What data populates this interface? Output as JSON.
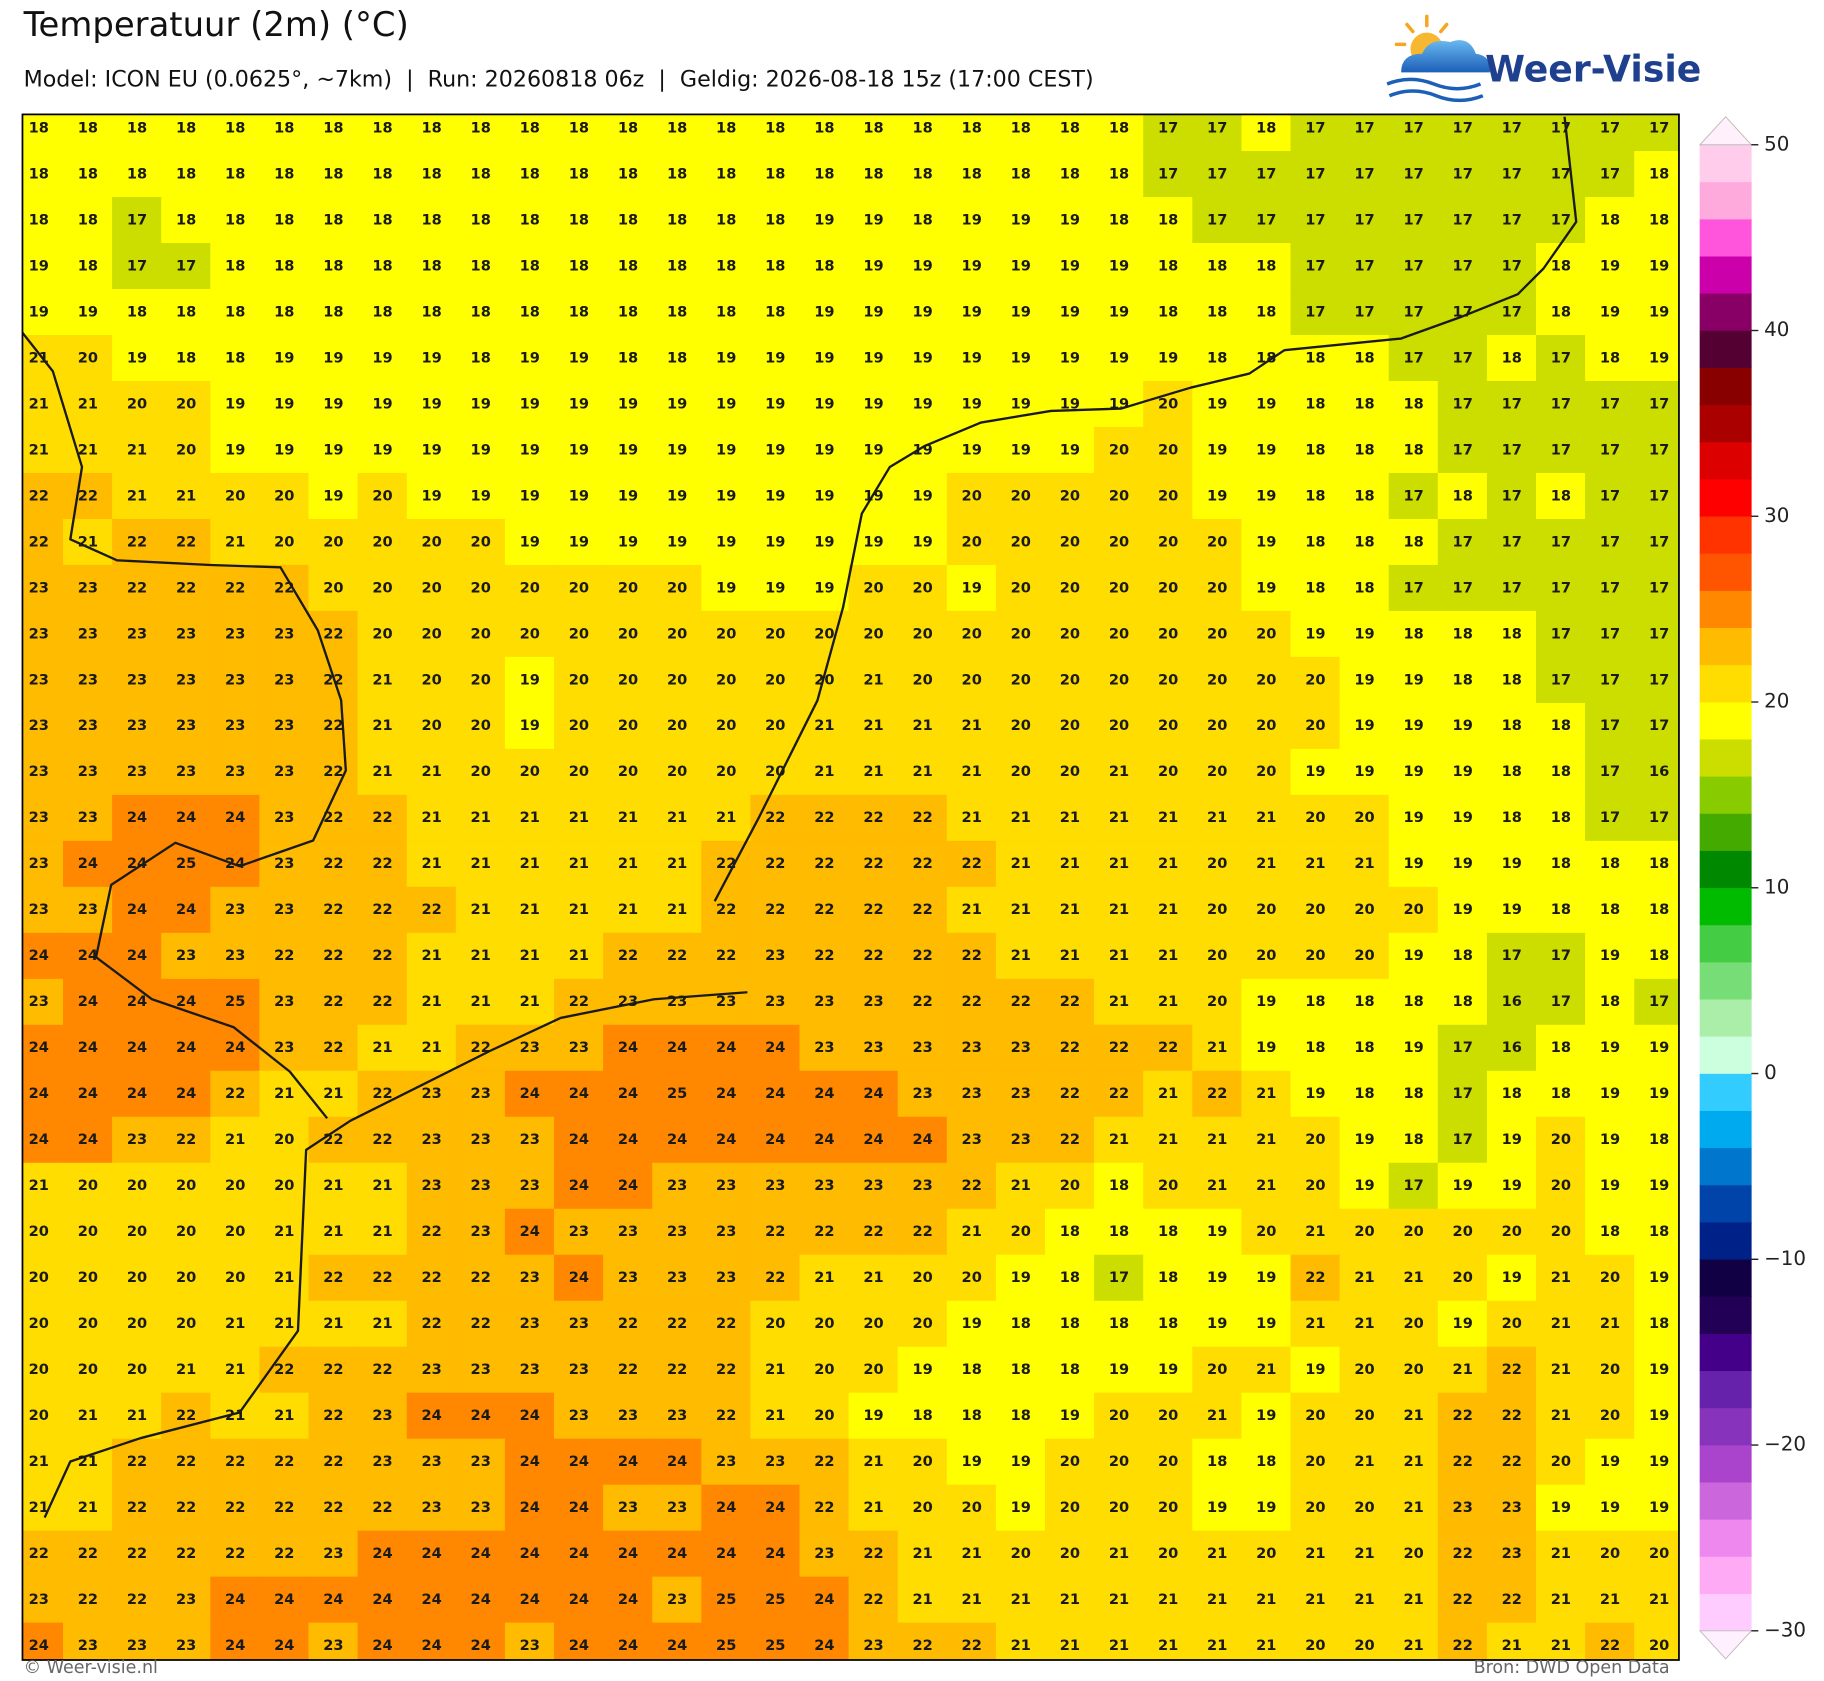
{
  "header": {
    "title": "Temperatuur (2m) (°C)",
    "subtitle": "Model: ICON EU (0.0625°, ~7km)  |  Run: 20260818 06z  |  Geldig: 2026-08-18 15z (17:00 CEST)"
  },
  "logo": {
    "text": "Weer-Visie"
  },
  "grid": {
    "rows": [
      [
        18,
        18,
        18,
        18,
        18,
        18,
        18,
        18,
        18,
        18,
        18,
        18,
        18,
        18,
        18,
        18,
        18,
        18,
        18,
        18,
        18,
        18,
        18,
        17,
        17,
        18,
        17,
        17,
        17,
        17,
        17,
        17,
        17,
        17
      ],
      [
        18,
        18,
        18,
        18,
        18,
        18,
        18,
        18,
        18,
        18,
        18,
        18,
        18,
        18,
        18,
        18,
        18,
        18,
        18,
        18,
        18,
        18,
        18,
        17,
        17,
        17,
        17,
        17,
        17,
        17,
        17,
        17,
        17,
        18
      ],
      [
        18,
        18,
        17,
        18,
        18,
        18,
        18,
        18,
        18,
        18,
        18,
        18,
        18,
        18,
        18,
        18,
        19,
        19,
        18,
        19,
        19,
        19,
        18,
        18,
        17,
        17,
        17,
        17,
        17,
        17,
        17,
        17,
        18,
        18
      ],
      [
        19,
        18,
        17,
        17,
        18,
        18,
        18,
        18,
        18,
        18,
        18,
        18,
        18,
        18,
        18,
        18,
        18,
        19,
        19,
        19,
        19,
        19,
        19,
        18,
        18,
        18,
        17,
        17,
        17,
        17,
        17,
        18,
        19,
        19
      ],
      [
        19,
        19,
        18,
        18,
        18,
        18,
        18,
        18,
        18,
        18,
        18,
        18,
        18,
        18,
        18,
        18,
        19,
        19,
        19,
        19,
        19,
        19,
        19,
        18,
        18,
        18,
        17,
        17,
        17,
        17,
        17,
        18,
        19,
        19
      ],
      [
        21,
        20,
        19,
        18,
        18,
        19,
        19,
        19,
        19,
        18,
        19,
        19,
        18,
        18,
        19,
        19,
        19,
        19,
        19,
        19,
        19,
        19,
        19,
        19,
        18,
        18,
        18,
        18,
        17,
        17,
        18,
        17,
        18,
        19
      ],
      [
        21,
        21,
        20,
        20,
        19,
        19,
        19,
        19,
        19,
        19,
        19,
        19,
        19,
        19,
        19,
        19,
        19,
        19,
        19,
        19,
        19,
        19,
        19,
        20,
        19,
        19,
        18,
        18,
        18,
        17,
        17,
        17,
        17,
        17
      ],
      [
        21,
        21,
        21,
        20,
        19,
        19,
        19,
        19,
        19,
        19,
        19,
        19,
        19,
        19,
        19,
        19,
        19,
        19,
        19,
        19,
        19,
        19,
        20,
        20,
        19,
        19,
        18,
        18,
        18,
        17,
        17,
        17,
        17,
        17
      ],
      [
        22,
        22,
        21,
        21,
        20,
        20,
        19,
        20,
        19,
        19,
        19,
        19,
        19,
        19,
        19,
        19,
        19,
        19,
        19,
        20,
        20,
        20,
        20,
        20,
        19,
        19,
        18,
        18,
        17,
        18,
        17,
        18,
        17,
        17
      ],
      [
        22,
        21,
        22,
        22,
        21,
        20,
        20,
        20,
        20,
        20,
        19,
        19,
        19,
        19,
        19,
        19,
        19,
        19,
        19,
        20,
        20,
        20,
        20,
        20,
        20,
        19,
        18,
        18,
        18,
        17,
        17,
        17,
        17,
        17
      ],
      [
        23,
        23,
        22,
        22,
        22,
        22,
        20,
        20,
        20,
        20,
        20,
        20,
        20,
        20,
        19,
        19,
        19,
        20,
        20,
        19,
        20,
        20,
        20,
        20,
        20,
        19,
        18,
        18,
        17,
        17,
        17,
        17,
        17,
        17
      ],
      [
        23,
        23,
        23,
        23,
        23,
        23,
        22,
        20,
        20,
        20,
        20,
        20,
        20,
        20,
        20,
        20,
        20,
        20,
        20,
        20,
        20,
        20,
        20,
        20,
        20,
        20,
        19,
        19,
        18,
        18,
        18,
        17,
        17,
        17
      ],
      [
        23,
        23,
        23,
        23,
        23,
        23,
        22,
        21,
        20,
        20,
        19,
        20,
        20,
        20,
        20,
        20,
        20,
        21,
        20,
        20,
        20,
        20,
        20,
        20,
        20,
        20,
        20,
        19,
        19,
        18,
        18,
        17,
        17,
        17
      ],
      [
        23,
        23,
        23,
        23,
        23,
        23,
        22,
        21,
        20,
        20,
        19,
        20,
        20,
        20,
        20,
        20,
        21,
        21,
        21,
        21,
        20,
        20,
        20,
        20,
        20,
        20,
        20,
        19,
        19,
        19,
        18,
        18,
        17,
        17
      ],
      [
        23,
        23,
        23,
        23,
        23,
        23,
        22,
        21,
        21,
        20,
        20,
        20,
        20,
        20,
        20,
        20,
        21,
        21,
        21,
        21,
        20,
        20,
        21,
        20,
        20,
        20,
        19,
        19,
        19,
        19,
        18,
        18,
        17,
        16
      ],
      [
        23,
        23,
        24,
        24,
        24,
        23,
        22,
        22,
        21,
        21,
        21,
        21,
        21,
        21,
        21,
        22,
        22,
        22,
        22,
        21,
        21,
        21,
        21,
        21,
        21,
        21,
        20,
        20,
        19,
        19,
        18,
        18,
        17,
        17
      ],
      [
        23,
        24,
        24,
        25,
        24,
        23,
        22,
        22,
        21,
        21,
        21,
        21,
        21,
        21,
        22,
        22,
        22,
        22,
        22,
        22,
        21,
        21,
        21,
        21,
        20,
        21,
        21,
        21,
        19,
        19,
        19,
        18,
        18,
        18
      ],
      [
        23,
        23,
        24,
        24,
        23,
        23,
        22,
        22,
        22,
        21,
        21,
        21,
        21,
        21,
        22,
        22,
        22,
        22,
        22,
        21,
        21,
        21,
        21,
        21,
        20,
        20,
        20,
        20,
        20,
        19,
        19,
        18,
        18,
        18
      ],
      [
        24,
        24,
        24,
        23,
        23,
        22,
        22,
        22,
        21,
        21,
        21,
        21,
        22,
        22,
        22,
        23,
        22,
        22,
        22,
        22,
        21,
        21,
        21,
        21,
        20,
        20,
        20,
        20,
        19,
        18,
        17,
        17,
        19,
        18
      ],
      [
        23,
        24,
        24,
        24,
        25,
        23,
        22,
        22,
        21,
        21,
        21,
        22,
        23,
        23,
        23,
        23,
        23,
        23,
        22,
        22,
        22,
        22,
        21,
        21,
        20,
        19,
        18,
        18,
        18,
        18,
        16,
        17,
        18,
        17
      ],
      [
        24,
        24,
        24,
        24,
        24,
        23,
        22,
        21,
        21,
        22,
        23,
        23,
        24,
        24,
        24,
        24,
        23,
        23,
        23,
        23,
        23,
        22,
        22,
        22,
        21,
        19,
        18,
        18,
        19,
        17,
        16,
        18,
        19,
        19
      ],
      [
        24,
        24,
        24,
        24,
        22,
        21,
        21,
        22,
        23,
        23,
        24,
        24,
        24,
        25,
        24,
        24,
        24,
        24,
        23,
        23,
        23,
        22,
        22,
        21,
        22,
        21,
        19,
        18,
        18,
        17,
        18,
        18,
        19,
        19
      ],
      [
        24,
        24,
        23,
        22,
        21,
        20,
        22,
        22,
        23,
        23,
        23,
        24,
        24,
        24,
        24,
        24,
        24,
        24,
        24,
        23,
        23,
        22,
        21,
        21,
        21,
        21,
        20,
        19,
        18,
        17,
        19,
        20,
        19,
        18
      ],
      [
        21,
        20,
        20,
        20,
        20,
        20,
        21,
        21,
        23,
        23,
        23,
        24,
        24,
        23,
        23,
        23,
        23,
        23,
        23,
        22,
        21,
        20,
        18,
        20,
        21,
        21,
        20,
        19,
        17,
        19,
        19,
        20,
        19,
        19
      ],
      [
        20,
        20,
        20,
        20,
        20,
        21,
        21,
        21,
        22,
        23,
        24,
        23,
        23,
        23,
        23,
        22,
        22,
        22,
        22,
        21,
        20,
        18,
        18,
        18,
        19,
        20,
        21,
        20,
        20,
        20,
        20,
        20,
        18,
        18
      ],
      [
        20,
        20,
        20,
        20,
        20,
        21,
        22,
        22,
        22,
        22,
        23,
        24,
        23,
        23,
        23,
        22,
        21,
        21,
        20,
        20,
        19,
        18,
        17,
        18,
        19,
        19,
        22,
        21,
        21,
        20,
        19,
        21,
        20,
        19
      ],
      [
        20,
        20,
        20,
        20,
        21,
        21,
        21,
        21,
        22,
        22,
        23,
        23,
        22,
        22,
        22,
        20,
        20,
        20,
        20,
        19,
        18,
        18,
        18,
        18,
        19,
        19,
        21,
        21,
        20,
        19,
        20,
        21,
        21,
        18
      ],
      [
        20,
        20,
        20,
        21,
        21,
        22,
        22,
        22,
        23,
        23,
        23,
        23,
        22,
        22,
        22,
        21,
        20,
        20,
        19,
        18,
        18,
        18,
        19,
        19,
        20,
        21,
        19,
        20,
        20,
        21,
        22,
        21,
        20,
        19
      ],
      [
        20,
        21,
        21,
        22,
        21,
        21,
        22,
        23,
        24,
        24,
        24,
        23,
        23,
        23,
        22,
        21,
        20,
        19,
        18,
        18,
        18,
        19,
        20,
        20,
        21,
        19,
        20,
        20,
        21,
        22,
        22,
        21,
        20,
        19
      ],
      [
        21,
        21,
        22,
        22,
        22,
        22,
        22,
        23,
        23,
        23,
        24,
        24,
        24,
        24,
        23,
        23,
        22,
        21,
        20,
        19,
        19,
        20,
        20,
        20,
        18,
        18,
        20,
        21,
        21,
        22,
        22,
        20,
        19,
        19
      ],
      [
        21,
        21,
        22,
        22,
        22,
        22,
        22,
        22,
        23,
        23,
        24,
        24,
        23,
        23,
        24,
        24,
        22,
        21,
        20,
        20,
        19,
        20,
        20,
        20,
        19,
        19,
        20,
        20,
        21,
        23,
        23,
        19,
        19,
        19
      ],
      [
        22,
        22,
        22,
        22,
        22,
        22,
        23,
        24,
        24,
        24,
        24,
        24,
        24,
        24,
        24,
        24,
        23,
        22,
        21,
        21,
        20,
        20,
        21,
        20,
        21,
        20,
        21,
        21,
        20,
        22,
        23,
        21,
        20,
        20
      ],
      [
        23,
        22,
        22,
        23,
        24,
        24,
        24,
        24,
        24,
        24,
        24,
        24,
        24,
        23,
        25,
        25,
        24,
        22,
        21,
        21,
        21,
        21,
        21,
        21,
        21,
        21,
        21,
        21,
        21,
        22,
        22,
        21,
        21,
        21
      ],
      [
        24,
        23,
        23,
        23,
        24,
        24,
        23,
        24,
        24,
        24,
        23,
        24,
        24,
        24,
        25,
        25,
        24,
        23,
        22,
        22,
        21,
        21,
        21,
        21,
        21,
        21,
        20,
        20,
        21,
        22,
        21,
        21,
        22,
        20
      ]
    ]
  },
  "colorbar": {
    "range": [
      -30,
      50
    ],
    "ticks": [
      50,
      40,
      30,
      20,
      10,
      0,
      {
        "value": -10,
        "label": "−10"
      },
      {
        "value": -20,
        "label": "−20"
      },
      {
        "value": -30,
        "label": "−30"
      }
    ],
    "under": "#fff0ff",
    "over": "#fff0fb",
    "colors": [
      "#ffccff",
      "#ffaaf5",
      "#ee88ee",
      "#cc66dd",
      "#aa44cc",
      "#8833bb",
      "#6622aa",
      "#440088",
      "#220055",
      "#110044",
      "#002288",
      "#0044aa",
      "#0077cc",
      "#00aaee",
      "#33ccff",
      "#ccffdd",
      "#aaeeaa",
      "#77dd77",
      "#44cc44",
      "#00bb00",
      "#008800",
      "#44aa00",
      "#88cc00",
      "#ccdd00",
      "#ffff00",
      "#ffdd00",
      "#ffbb00",
      "#ff8800",
      "#ff5500",
      "#ff3300",
      "#ff0000",
      "#dd0000",
      "#aa0000",
      "#880000",
      "#550033",
      "#880066",
      "#cc00aa",
      "#ff55dd",
      "#ffaadd",
      "#ffcceb"
    ]
  },
  "footer": {
    "left": "© Weer-visie.nl",
    "right": "Bron: DWD Open Data"
  }
}
